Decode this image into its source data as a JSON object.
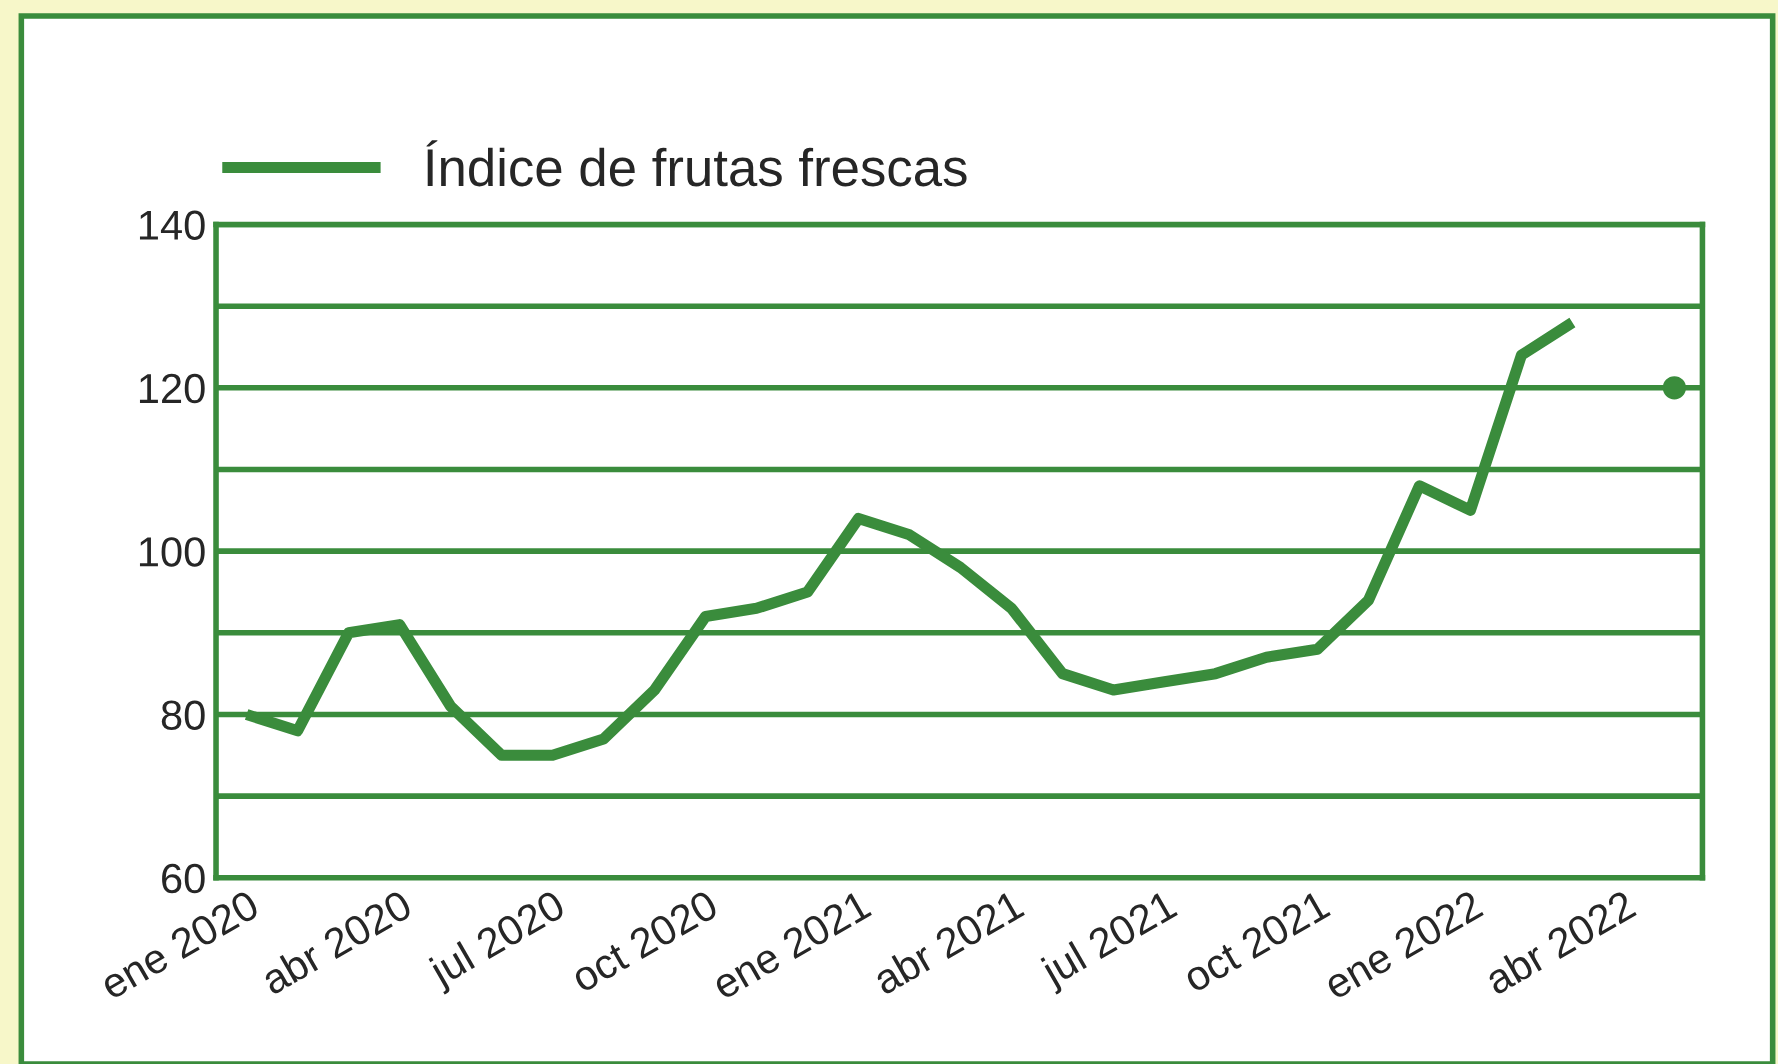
{
  "chart_data": {
    "type": "line",
    "categories": [
      "ene 2020",
      null,
      null,
      "abr 2020",
      null,
      null,
      "jul 2020",
      null,
      null,
      "oct 2020",
      null,
      null,
      "ene 2021",
      null,
      null,
      "abr 2021",
      null,
      null,
      "jul 2021",
      null,
      null,
      "oct 2021",
      null,
      null,
      "ene 2022",
      null,
      null,
      "abr 2022",
      null
    ],
    "series": [
      {
        "name": "Índice de frutas frescas",
        "color": "#3a8c3c",
        "values": [
          80,
          78,
          90,
          91,
          81,
          75,
          75,
          77,
          83,
          92,
          93,
          95,
          104,
          102,
          98,
          93,
          85,
          83,
          84,
          85,
          87,
          88,
          94,
          108,
          105,
          124,
          128,
          null,
          null
        ]
      },
      {
        "type": "scatter",
        "color": "#3a8c3c",
        "marker": "circle",
        "values": [
          null,
          null,
          null,
          null,
          null,
          null,
          null,
          null,
          null,
          null,
          null,
          null,
          null,
          null,
          null,
          null,
          null,
          null,
          null,
          null,
          null,
          null,
          null,
          null,
          null,
          null,
          null,
          null,
          120
        ]
      }
    ],
    "ylim": [
      60,
      140
    ],
    "yticks": [
      60,
      {
        "value": 70,
        "label": null
      },
      80,
      {
        "value": 90,
        "label": null
      },
      100,
      {
        "value": 110,
        "label": null
      },
      120,
      {
        "value": 130,
        "label": null
      },
      140
    ],
    "grid": "y",
    "legend": "top left",
    "line_style": "solid",
    "marker": "none"
  }
}
